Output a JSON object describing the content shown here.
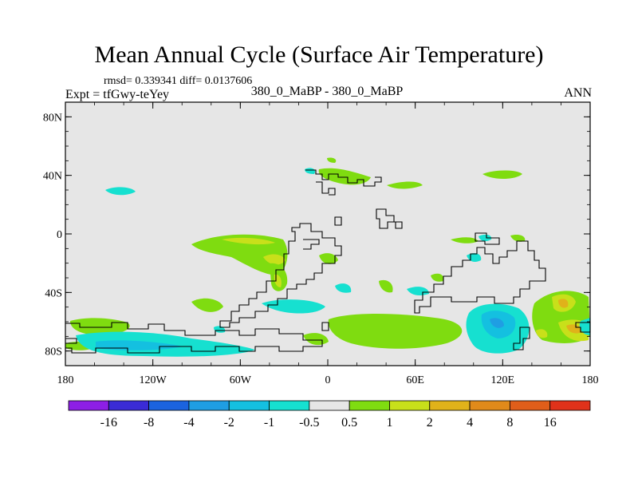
{
  "title": "Mean Annual Cycle (Surface Air Temperature)",
  "stats": "rmsd= 0.339341 diff= 0.0137606",
  "experiment": "Expt = tfGwy-teYey",
  "comparison": "380_0_MaBP - 380_0_MaBP",
  "season": "ANN",
  "map": {
    "lon_range": [
      -180,
      180
    ],
    "lat_range": [
      -90,
      90
    ],
    "background_color": "#e6e6e6",
    "lat_ticks": [
      {
        "lat": 80,
        "label": "80N"
      },
      {
        "lat": 40,
        "label": "40N"
      },
      {
        "lat": 0,
        "label": "0"
      },
      {
        "lat": -40,
        "label": "40S"
      },
      {
        "lat": -80,
        "label": "80S"
      }
    ],
    "lon_ticks": [
      {
        "lon": -180,
        "label": "180"
      },
      {
        "lon": -120,
        "label": "120W"
      },
      {
        "lon": -60,
        "label": "60W"
      },
      {
        "lon": 0,
        "label": "0"
      },
      {
        "lon": 60,
        "label": "60E"
      },
      {
        "lon": 120,
        "label": "120E"
      },
      {
        "lon": 180,
        "label": "180"
      }
    ]
  },
  "colorbar": {
    "colors": [
      "#8d1fe5",
      "#3a2bd6",
      "#1b63df",
      "#1f9ee3",
      "#14c0e0",
      "#16e0d0",
      "#e6e6e6",
      "#7fdc10",
      "#c8e01a",
      "#e0b21a",
      "#e08a1a",
      "#e05e1a",
      "#e0321a"
    ],
    "labels": [
      "-16",
      "-8",
      "-4",
      "-2",
      "-1",
      "-0.5",
      "0.5",
      "1",
      "2",
      "4",
      "8",
      "16"
    ]
  }
}
